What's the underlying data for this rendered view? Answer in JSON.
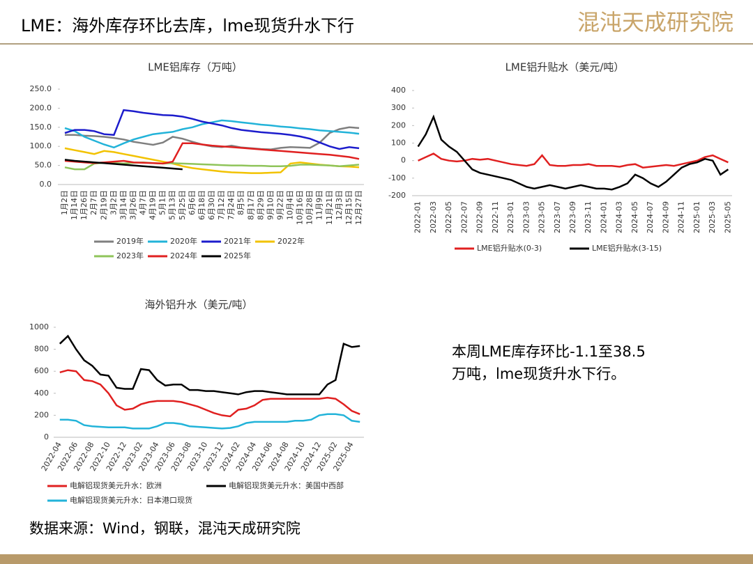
{
  "header": {
    "title": "LME：海外库存环比去库，lme现货升水下行",
    "logo": "混沌天成研究院"
  },
  "chart_data": [
    {
      "type": "line",
      "title": "LME铝库存（万吨）",
      "grid": false,
      "categories": [
        "1月2日",
        "1月14日",
        "1月26日",
        "2月7日",
        "2月19日",
        "3月2日",
        "3月14日",
        "3月26日",
        "4月7日",
        "4月19日",
        "5月1日",
        "5月13日",
        "5月25日",
        "6月6日",
        "6月18日",
        "6月30日",
        "7月12日",
        "7月24日",
        "8月5日",
        "8月17日",
        "8月29日",
        "9月10日",
        "9月22日",
        "10月4日",
        "10月16日",
        "10月28日",
        "11月9日",
        "11月21日",
        "12月3日",
        "12月15日",
        "12月27日"
      ],
      "ylim": [
        0,
        250
      ],
      "yticks": [
        {
          "value": 0,
          "label": "0.0"
        },
        {
          "value": 50,
          "label": "50.0"
        },
        {
          "value": 100,
          "label": "100.0"
        },
        {
          "value": 150,
          "label": "150.0"
        },
        {
          "value": 200,
          "label": "200.0"
        },
        {
          "value": 250,
          "label": "250.0"
        }
      ],
      "series": [
        {
          "name": "2019年",
          "color": "#7f7f7f",
          "values": [
            130,
            130,
            128,
            127,
            125,
            122,
            118,
            112,
            108,
            104,
            110,
            125,
            120,
            112,
            105,
            100,
            98,
            102,
            97,
            95,
            93,
            92,
            96,
            98,
            97,
            96,
            110,
            135,
            145,
            150,
            148
          ]
        },
        {
          "name": "2020年",
          "color": "#22b3d9",
          "values": [
            148,
            140,
            125,
            115,
            105,
            97,
            108,
            118,
            125,
            132,
            135,
            138,
            145,
            150,
            158,
            163,
            168,
            166,
            163,
            160,
            157,
            155,
            152,
            150,
            147,
            145,
            142,
            140,
            138,
            136,
            133
          ]
        },
        {
          "name": "2021年",
          "color": "#1c1ccc",
          "values": [
            135,
            143,
            143,
            140,
            132,
            130,
            195,
            192,
            188,
            185,
            182,
            181,
            178,
            172,
            165,
            160,
            155,
            148,
            143,
            140,
            137,
            135,
            133,
            130,
            126,
            120,
            110,
            100,
            93,
            98,
            95
          ]
        },
        {
          "name": "2022年",
          "color": "#f2c200",
          "values": [
            95,
            90,
            85,
            80,
            88,
            85,
            80,
            75,
            70,
            65,
            60,
            55,
            48,
            43,
            40,
            37,
            34,
            32,
            31,
            30,
            30,
            31,
            32,
            55,
            58,
            55,
            52,
            50,
            48,
            47,
            45
          ]
        },
        {
          "name": "2023年",
          "color": "#8fc45a",
          "values": [
            45,
            40,
            40,
            55,
            57,
            56,
            55,
            57,
            58,
            56,
            55,
            56,
            55,
            54,
            53,
            52,
            51,
            50,
            50,
            49,
            49,
            48,
            48,
            49,
            52,
            52,
            51,
            50,
            48,
            50,
            52
          ]
        },
        {
          "name": "2024年",
          "color": "#e02020",
          "values": [
            62,
            60,
            58,
            56,
            58,
            60,
            62,
            58,
            57,
            56,
            55,
            60,
            108,
            108,
            105,
            102,
            100,
            98,
            96,
            94,
            92,
            90,
            88,
            86,
            84,
            82,
            80,
            78,
            75,
            72,
            67
          ]
        },
        {
          "name": "2025年",
          "color": "#000000",
          "values": [
            65,
            62,
            60,
            58,
            56,
            54,
            52,
            50,
            48,
            46,
            44,
            42,
            40,
            null,
            null,
            null,
            null,
            null,
            null,
            null,
            null,
            null,
            null,
            null,
            null,
            null,
            null,
            null,
            null,
            null,
            null
          ]
        }
      ]
    },
    {
      "type": "line",
      "title": "LME铝升贴水（美元/吨）",
      "grid": false,
      "categories": [
        "2022-01",
        null,
        "2022-03",
        null,
        "2022-05",
        null,
        "2022-07",
        null,
        "2022-09",
        null,
        "2022-11",
        null,
        "2023-01",
        null,
        "2023-03",
        null,
        "2023-05",
        null,
        "2023-07",
        null,
        "2023-09",
        null,
        "2023-11",
        null,
        "2024-01",
        null,
        "2024-03",
        null,
        "2024-05",
        null,
        "2024-07",
        null,
        "2024-09",
        null,
        "2024-11",
        null,
        "2025-01",
        null,
        "2025-03",
        null,
        "2025-05"
      ],
      "ylim": [
        -200,
        400
      ],
      "yticks": [
        -200,
        -100,
        0,
        100,
        200,
        300,
        400
      ],
      "series": [
        {
          "name": "LME铝升贴水(0-3)",
          "color": "#e02020",
          "values": [
            0,
            20,
            40,
            10,
            0,
            -5,
            0,
            10,
            5,
            10,
            0,
            -10,
            -20,
            -25,
            -30,
            -20,
            30,
            -25,
            -30,
            -30,
            -25,
            -25,
            -20,
            -30,
            -30,
            -30,
            -35,
            -25,
            -20,
            -40,
            -35,
            -30,
            -25,
            -30,
            -20,
            -10,
            0,
            20,
            30,
            10,
            -10
          ]
        },
        {
          "name": "LME铝升贴水(3-15)",
          "color": "#000000",
          "values": [
            80,
            150,
            250,
            120,
            80,
            50,
            0,
            -50,
            -70,
            -80,
            -90,
            -100,
            -110,
            -130,
            -150,
            -160,
            -150,
            -140,
            -150,
            -160,
            -150,
            -140,
            -150,
            -160,
            -160,
            -165,
            -150,
            -130,
            -80,
            -100,
            -130,
            -150,
            -120,
            -80,
            -40,
            -20,
            -10,
            10,
            0,
            -80,
            -50
          ]
        }
      ]
    },
    {
      "type": "line",
      "title": "海外铝升水（美元/吨）",
      "grid": false,
      "categories": [
        "2022-04",
        null,
        "2022-06",
        null,
        "2022-08",
        null,
        "2022-10",
        null,
        "2022-12",
        null,
        "2023-02",
        null,
        "2023-04",
        null,
        "2023-06",
        null,
        "2023-08",
        null,
        "2023-10",
        null,
        "2023-12",
        null,
        "2024-02",
        null,
        "2024-04",
        null,
        "2024-06",
        null,
        "2024-08",
        null,
        "2024-10",
        null,
        "2024-12",
        null,
        "2025-02",
        null,
        "2025-04",
        null
      ],
      "ylim": [
        0,
        1000
      ],
      "yticks": [
        0,
        200,
        400,
        600,
        800,
        1000
      ],
      "series": [
        {
          "name": "电解铝现货美元升水：欧洲",
          "color": "#e02020",
          "values": [
            590,
            610,
            600,
            520,
            510,
            480,
            400,
            290,
            250,
            260,
            300,
            320,
            330,
            330,
            330,
            320,
            300,
            280,
            250,
            220,
            200,
            190,
            250,
            260,
            290,
            340,
            350,
            350,
            350,
            350,
            350,
            350,
            350,
            360,
            350,
            300,
            240,
            210
          ]
        },
        {
          "name": "电解铝现货美元升水：美国中西部",
          "color": "#000000",
          "values": [
            850,
            920,
            800,
            700,
            650,
            570,
            560,
            450,
            440,
            440,
            620,
            610,
            520,
            470,
            480,
            480,
            430,
            430,
            420,
            420,
            410,
            400,
            390,
            410,
            420,
            420,
            410,
            400,
            390,
            390,
            390,
            390,
            390,
            480,
            520,
            850,
            820,
            830
          ]
        },
        {
          "name": "电解铝现货美元升水：日本港口现货",
          "color": "#22b3d9",
          "values": [
            160,
            160,
            150,
            110,
            100,
            95,
            90,
            90,
            90,
            80,
            80,
            80,
            100,
            130,
            130,
            120,
            100,
            95,
            90,
            85,
            80,
            85,
            100,
            130,
            140,
            140,
            140,
            140,
            140,
            150,
            150,
            160,
            200,
            210,
            210,
            200,
            150,
            140
          ]
        }
      ]
    }
  ],
  "commentary": "本周LME库存环比-1.1至38.5万吨，lme现货升水下行。",
  "source": "数据来源：Wind，钢联，混沌天成研究院"
}
